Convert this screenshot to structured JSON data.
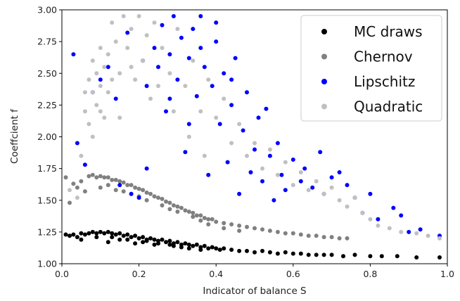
{
  "chart_data": {
    "type": "scatter",
    "xlabel": "Indicator of balance S",
    "ylabel": "Coeffcient f",
    "xlim": [
      0.0,
      1.0
    ],
    "ylim": [
      1.0,
      3.0
    ],
    "xticks": [
      "0.0",
      "0.2",
      "0.4",
      "0.6",
      "0.8",
      "1.0"
    ],
    "yticks": [
      "1.00",
      "1.25",
      "1.50",
      "1.75",
      "2.00",
      "2.25",
      "2.50",
      "2.75",
      "3.00"
    ],
    "grid": false,
    "legend_position": "top-right",
    "series": [
      {
        "name": "MC draws",
        "color": "#000000",
        "points": [
          [
            0.01,
            1.23
          ],
          [
            0.02,
            1.22
          ],
          [
            0.03,
            1.23
          ],
          [
            0.04,
            1.21
          ],
          [
            0.05,
            1.24
          ],
          [
            0.06,
            1.23
          ],
          [
            0.07,
            1.24
          ],
          [
            0.08,
            1.25
          ],
          [
            0.09,
            1.24
          ],
          [
            0.1,
            1.25
          ],
          [
            0.11,
            1.24
          ],
          [
            0.12,
            1.25
          ],
          [
            0.13,
            1.24
          ],
          [
            0.14,
            1.23
          ],
          [
            0.15,
            1.24
          ],
          [
            0.16,
            1.22
          ],
          [
            0.17,
            1.23
          ],
          [
            0.18,
            1.21
          ],
          [
            0.19,
            1.22
          ],
          [
            0.2,
            1.2
          ],
          [
            0.21,
            1.21
          ],
          [
            0.22,
            1.19
          ],
          [
            0.23,
            1.2
          ],
          [
            0.24,
            1.19
          ],
          [
            0.25,
            1.18
          ],
          [
            0.26,
            1.19
          ],
          [
            0.27,
            1.17
          ],
          [
            0.28,
            1.18
          ],
          [
            0.29,
            1.16
          ],
          [
            0.3,
            1.17
          ],
          [
            0.31,
            1.15
          ],
          [
            0.32,
            1.16
          ],
          [
            0.33,
            1.15
          ],
          [
            0.34,
            1.14
          ],
          [
            0.35,
            1.15
          ],
          [
            0.36,
            1.13
          ],
          [
            0.37,
            1.14
          ],
          [
            0.38,
            1.12
          ],
          [
            0.39,
            1.13
          ],
          [
            0.4,
            1.12
          ],
          [
            0.41,
            1.11
          ],
          [
            0.42,
            1.12
          ],
          [
            0.44,
            1.11
          ],
          [
            0.46,
            1.1
          ],
          [
            0.48,
            1.1
          ],
          [
            0.5,
            1.09
          ],
          [
            0.52,
            1.1
          ],
          [
            0.54,
            1.09
          ],
          [
            0.56,
            1.08
          ],
          [
            0.58,
            1.09
          ],
          [
            0.6,
            1.08
          ],
          [
            0.62,
            1.08
          ],
          [
            0.64,
            1.07
          ],
          [
            0.66,
            1.07
          ],
          [
            0.68,
            1.07
          ],
          [
            0.7,
            1.07
          ],
          [
            0.73,
            1.06
          ],
          [
            0.76,
            1.07
          ],
          [
            0.8,
            1.06
          ],
          [
            0.83,
            1.06
          ],
          [
            0.87,
            1.06
          ],
          [
            0.92,
            1.05
          ],
          [
            0.98,
            1.05
          ],
          [
            0.05,
            1.19
          ],
          [
            0.09,
            1.21
          ],
          [
            0.13,
            1.21
          ],
          [
            0.17,
            1.19
          ],
          [
            0.21,
            1.17
          ],
          [
            0.25,
            1.16
          ],
          [
            0.29,
            1.14
          ],
          [
            0.33,
            1.12
          ],
          [
            0.12,
            1.17
          ],
          [
            0.19,
            1.16
          ],
          [
            0.24,
            1.15
          ],
          [
            0.31,
            1.13
          ],
          [
            0.36,
            1.11
          ],
          [
            0.15,
            1.19
          ],
          [
            0.22,
            1.18
          ],
          [
            0.28,
            1.15
          ]
        ]
      },
      {
        "name": "Chernov",
        "color": "#808080",
        "points": [
          [
            0.01,
            1.68
          ],
          [
            0.02,
            1.48
          ],
          [
            0.03,
            1.63
          ],
          [
            0.04,
            1.6
          ],
          [
            0.05,
            1.65
          ],
          [
            0.06,
            1.57
          ],
          [
            0.07,
            1.69
          ],
          [
            0.08,
            1.7
          ],
          [
            0.09,
            1.68
          ],
          [
            0.1,
            1.69
          ],
          [
            0.11,
            1.68
          ],
          [
            0.12,
            1.68
          ],
          [
            0.13,
            1.66
          ],
          [
            0.14,
            1.66
          ],
          [
            0.15,
            1.65
          ],
          [
            0.16,
            1.64
          ],
          [
            0.17,
            1.62
          ],
          [
            0.18,
            1.62
          ],
          [
            0.19,
            1.6
          ],
          [
            0.2,
            1.59
          ],
          [
            0.21,
            1.58
          ],
          [
            0.22,
            1.56
          ],
          [
            0.23,
            1.55
          ],
          [
            0.24,
            1.53
          ],
          [
            0.25,
            1.52
          ],
          [
            0.26,
            1.51
          ],
          [
            0.27,
            1.49
          ],
          [
            0.28,
            1.48
          ],
          [
            0.29,
            1.46
          ],
          [
            0.3,
            1.45
          ],
          [
            0.31,
            1.44
          ],
          [
            0.32,
            1.42
          ],
          [
            0.33,
            1.41
          ],
          [
            0.34,
            1.4
          ],
          [
            0.35,
            1.38
          ],
          [
            0.36,
            1.38
          ],
          [
            0.37,
            1.36
          ],
          [
            0.38,
            1.35
          ],
          [
            0.39,
            1.35
          ],
          [
            0.4,
            1.33
          ],
          [
            0.42,
            1.32
          ],
          [
            0.44,
            1.31
          ],
          [
            0.46,
            1.3
          ],
          [
            0.48,
            1.29
          ],
          [
            0.5,
            1.28
          ],
          [
            0.52,
            1.27
          ],
          [
            0.54,
            1.26
          ],
          [
            0.56,
            1.25
          ],
          [
            0.58,
            1.24
          ],
          [
            0.6,
            1.24
          ],
          [
            0.62,
            1.23
          ],
          [
            0.64,
            1.22
          ],
          [
            0.66,
            1.22
          ],
          [
            0.68,
            1.21
          ],
          [
            0.7,
            1.21
          ],
          [
            0.72,
            1.2
          ],
          [
            0.74,
            1.2
          ],
          [
            0.1,
            1.6
          ],
          [
            0.14,
            1.58
          ],
          [
            0.18,
            1.55
          ],
          [
            0.22,
            1.5
          ],
          [
            0.26,
            1.46
          ],
          [
            0.3,
            1.41
          ],
          [
            0.34,
            1.37
          ],
          [
            0.38,
            1.31
          ],
          [
            0.42,
            1.28
          ],
          [
            0.46,
            1.26
          ],
          [
            0.12,
            1.62
          ],
          [
            0.2,
            1.53
          ],
          [
            0.28,
            1.43
          ],
          [
            0.36,
            1.34
          ],
          [
            0.16,
            1.57
          ]
        ]
      },
      {
        "name": "Lipschitz",
        "color": "#0000ff",
        "points": [
          [
            0.03,
            2.65
          ],
          [
            0.04,
            1.95
          ],
          [
            0.06,
            1.78
          ],
          [
            0.08,
            2.35
          ],
          [
            0.1,
            2.45
          ],
          [
            0.12,
            2.55
          ],
          [
            0.14,
            2.3
          ],
          [
            0.15,
            1.62
          ],
          [
            0.18,
            1.55
          ],
          [
            0.2,
            1.52
          ],
          [
            0.22,
            1.75
          ],
          [
            0.22,
            2.4
          ],
          [
            0.24,
            2.7
          ],
          [
            0.25,
            2.55
          ],
          [
            0.26,
            2.88
          ],
          [
            0.27,
            2.2
          ],
          [
            0.28,
            2.65
          ],
          [
            0.29,
            2.95
          ],
          [
            0.3,
            2.45
          ],
          [
            0.31,
            2.78
          ],
          [
            0.32,
            1.88
          ],
          [
            0.33,
            2.62
          ],
          [
            0.34,
            2.85
          ],
          [
            0.35,
            2.32
          ],
          [
            0.36,
            2.95
          ],
          [
            0.37,
            2.55
          ],
          [
            0.38,
            1.7
          ],
          [
            0.39,
            2.4
          ],
          [
            0.4,
            2.75
          ],
          [
            0.41,
            2.1
          ],
          [
            0.42,
            2.5
          ],
          [
            0.43,
            1.8
          ],
          [
            0.44,
            2.25
          ],
          [
            0.45,
            2.62
          ],
          [
            0.46,
            1.55
          ],
          [
            0.47,
            2.05
          ],
          [
            0.48,
            2.35
          ],
          [
            0.49,
            1.72
          ],
          [
            0.5,
            1.9
          ],
          [
            0.51,
            2.15
          ],
          [
            0.52,
            1.65
          ],
          [
            0.53,
            2.22
          ],
          [
            0.54,
            1.85
          ],
          [
            0.55,
            1.5
          ],
          [
            0.56,
            1.95
          ],
          [
            0.57,
            1.7
          ],
          [
            0.58,
            1.58
          ],
          [
            0.6,
            1.82
          ],
          [
            0.62,
            1.65
          ],
          [
            0.63,
            1.75
          ],
          [
            0.65,
            1.6
          ],
          [
            0.67,
            1.88
          ],
          [
            0.68,
            1.55
          ],
          [
            0.7,
            1.68
          ],
          [
            0.72,
            1.72
          ],
          [
            0.74,
            1.62
          ],
          [
            0.76,
            1.52
          ],
          [
            0.78,
            1.4
          ],
          [
            0.8,
            1.55
          ],
          [
            0.82,
            1.35
          ],
          [
            0.86,
            1.44
          ],
          [
            0.88,
            1.38
          ],
          [
            0.9,
            1.25
          ],
          [
            0.93,
            1.27
          ],
          [
            0.98,
            1.22
          ],
          [
            0.17,
            2.82
          ],
          [
            0.21,
            2.6
          ],
          [
            0.28,
            2.3
          ],
          [
            0.33,
            2.1
          ],
          [
            0.36,
            2.7
          ],
          [
            0.4,
            2.9
          ],
          [
            0.44,
            2.45
          ]
        ]
      },
      {
        "name": "Quadratic",
        "color": "#c0c0c0",
        "points": [
          [
            0.02,
            1.58
          ],
          [
            0.04,
            1.52
          ],
          [
            0.05,
            1.85
          ],
          [
            0.06,
            2.2
          ],
          [
            0.07,
            2.45
          ],
          [
            0.07,
            2.1
          ],
          [
            0.08,
            2.35
          ],
          [
            0.08,
            2.6
          ],
          [
            0.09,
            2.25
          ],
          [
            0.09,
            2.5
          ],
          [
            0.1,
            2.4
          ],
          [
            0.1,
            2.7
          ],
          [
            0.11,
            2.55
          ],
          [
            0.11,
            2.15
          ],
          [
            0.12,
            2.65
          ],
          [
            0.12,
            2.35
          ],
          [
            0.13,
            2.9
          ],
          [
            0.14,
            2.75
          ],
          [
            0.15,
            2.5
          ],
          [
            0.16,
            2.95
          ],
          [
            0.17,
            2.7
          ],
          [
            0.18,
            2.85
          ],
          [
            0.19,
            2.45
          ],
          [
            0.2,
            2.95
          ],
          [
            0.21,
            2.6
          ],
          [
            0.22,
            2.8
          ],
          [
            0.23,
            2.3
          ],
          [
            0.24,
            2.9
          ],
          [
            0.26,
            2.7
          ],
          [
            0.28,
            2.5
          ],
          [
            0.3,
            2.85
          ],
          [
            0.32,
            2.4
          ],
          [
            0.34,
            2.6
          ],
          [
            0.36,
            2.2
          ],
          [
            0.38,
            2.45
          ],
          [
            0.4,
            2.15
          ],
          [
            0.42,
            2.3
          ],
          [
            0.44,
            1.95
          ],
          [
            0.46,
            2.1
          ],
          [
            0.48,
            1.85
          ],
          [
            0.5,
            1.95
          ],
          [
            0.52,
            1.75
          ],
          [
            0.54,
            1.9
          ],
          [
            0.56,
            1.7
          ],
          [
            0.58,
            1.8
          ],
          [
            0.6,
            1.62
          ],
          [
            0.62,
            1.72
          ],
          [
            0.64,
            1.58
          ],
          [
            0.66,
            1.65
          ],
          [
            0.68,
            1.55
          ],
          [
            0.7,
            1.6
          ],
          [
            0.72,
            1.5
          ],
          [
            0.74,
            1.45
          ],
          [
            0.76,
            1.52
          ],
          [
            0.78,
            1.4
          ],
          [
            0.8,
            1.35
          ],
          [
            0.82,
            1.3
          ],
          [
            0.85,
            1.28
          ],
          [
            0.88,
            1.25
          ],
          [
            0.92,
            1.24
          ],
          [
            0.95,
            1.22
          ],
          [
            0.98,
            1.2
          ],
          [
            0.06,
            2.35
          ],
          [
            0.08,
            2.0
          ],
          [
            0.1,
            2.2
          ],
          [
            0.13,
            2.45
          ],
          [
            0.15,
            2.15
          ],
          [
            0.18,
            2.55
          ],
          [
            0.25,
            2.4
          ],
          [
            0.29,
            2.2
          ],
          [
            0.33,
            2.0
          ],
          [
            0.37,
            1.85
          ]
        ]
      }
    ]
  }
}
